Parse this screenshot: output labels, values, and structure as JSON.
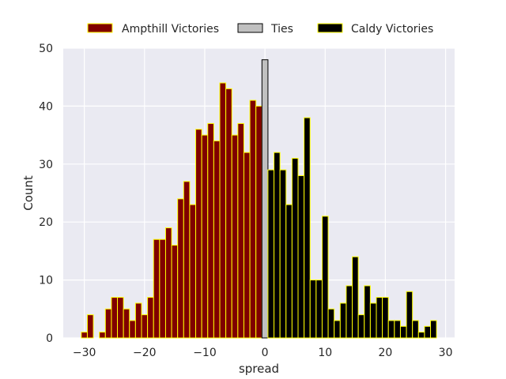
{
  "chart_data": {
    "type": "bar",
    "xlabel": "spread",
    "ylabel": "Count",
    "xlim": [
      -33.5,
      31.5
    ],
    "ylim": [
      0,
      50
    ],
    "x_ticks": [
      -30,
      -20,
      -10,
      0,
      10,
      20,
      30
    ],
    "x_tick_labels": [
      "−30",
      "−20",
      "−10",
      "0",
      "10",
      "20",
      "30"
    ],
    "y_ticks": [
      0,
      10,
      20,
      30,
      40,
      50
    ],
    "y_tick_labels": [
      "0",
      "10",
      "20",
      "30",
      "40",
      "50"
    ],
    "grid": true,
    "background": "#eaeaf2",
    "legend_position": "top-center, above plot",
    "bar_width": 1,
    "series": [
      {
        "name": "Ampthill Victories",
        "color": "#800000",
        "edgecolor": "#ffff00",
        "x": [
          -30,
          -29,
          -28,
          -27,
          -26,
          -25,
          -24,
          -23,
          -22,
          -21,
          -20,
          -19,
          -18,
          -17,
          -16,
          -15,
          -14,
          -13,
          -12,
          -11,
          -10,
          -9,
          -8,
          -7,
          -6,
          -5,
          -4,
          -3,
          -2,
          -1
        ],
        "values": [
          1,
          4,
          0,
          1,
          5,
          7,
          7,
          5,
          3,
          6,
          4,
          7,
          17,
          17,
          19,
          16,
          24,
          27,
          23,
          36,
          35,
          37,
          34,
          44,
          43,
          35,
          37,
          32,
          41,
          40
        ]
      },
      {
        "name": "Ties",
        "color": "#c0c0c0",
        "edgecolor": "#000000",
        "x": [
          0
        ],
        "values": [
          48
        ]
      },
      {
        "name": "Caldy Victories",
        "color": "#000000",
        "edgecolor": "#ffff00",
        "x": [
          1,
          2,
          3,
          4,
          5,
          6,
          7,
          8,
          9,
          10,
          11,
          12,
          13,
          14,
          15,
          16,
          17,
          18,
          19,
          20,
          21,
          22,
          23,
          24,
          25,
          26,
          27,
          28
        ],
        "values": [
          29,
          32,
          29,
          23,
          31,
          28,
          38,
          10,
          10,
          21,
          5,
          3,
          6,
          9,
          14,
          4,
          9,
          6,
          7,
          7,
          3,
          3,
          2,
          8,
          3,
          1,
          2,
          3
        ]
      }
    ]
  }
}
